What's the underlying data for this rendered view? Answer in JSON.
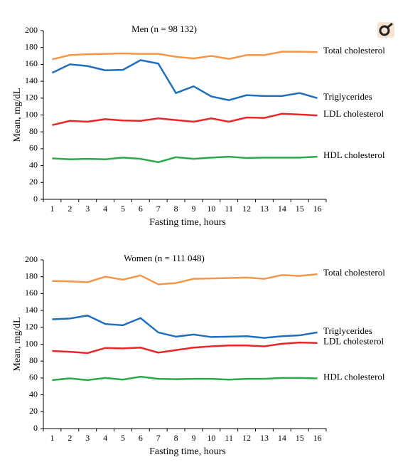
{
  "charts": [
    {
      "type": "line",
      "title": "Men (n = 98 132)",
      "x_label": "Fasting time, hours",
      "y_label": "Mean, mg/dL",
      "categories": [
        "1",
        "2",
        "3",
        "4",
        "5",
        "6",
        "7",
        "8",
        "9",
        "10",
        "11",
        "12",
        "13",
        "14",
        "15",
        "16"
      ],
      "ylim": [
        0,
        200
      ],
      "yticks": [
        0,
        20,
        40,
        60,
        80,
        100,
        120,
        140,
        160,
        180,
        200
      ],
      "series": [
        {
          "name": "Total cholesterol",
          "color": "#f79646",
          "values": [
            166,
            171,
            172,
            172.5,
            173,
            172.5,
            172.5,
            169,
            167,
            170,
            166.5,
            171,
            171,
            175,
            175,
            174.5
          ]
        },
        {
          "name": "Triglycerides",
          "color": "#1f6fbf",
          "values": [
            150,
            160,
            158,
            153,
            153.5,
            165,
            161,
            126,
            134,
            122,
            117.5,
            123.5,
            122.5,
            122.5,
            126,
            120
          ]
        },
        {
          "name": "LDL cholesterol",
          "color": "#e8262a",
          "values": [
            88,
            93,
            92,
            95,
            93.5,
            93,
            96,
            94,
            92,
            96,
            92,
            97,
            96.5,
            101.5,
            100.5,
            99.5
          ]
        },
        {
          "name": "HDL cholesterol",
          "color": "#2aaa4a",
          "values": [
            48.5,
            47.5,
            48,
            47.5,
            49.5,
            48,
            44,
            50,
            48,
            49.5,
            50.5,
            49,
            49.5,
            49.5,
            49.5,
            50.5
          ]
        }
      ]
    },
    {
      "type": "line",
      "title": "Women (n = 111 048)",
      "x_label": "Fasting time, hours",
      "y_label": "Mean, mg/dL",
      "categories": [
        "1",
        "2",
        "3",
        "4",
        "5",
        "6",
        "7",
        "8",
        "9",
        "10",
        "11",
        "12",
        "13",
        "14",
        "15",
        "16"
      ],
      "ylim": [
        0,
        200
      ],
      "yticks": [
        0,
        20,
        40,
        60,
        80,
        100,
        120,
        140,
        160,
        180,
        200
      ],
      "series": [
        {
          "name": "Total cholesterol",
          "color": "#f79646",
          "values": [
            175,
            174.5,
            173.5,
            180,
            176.5,
            181.5,
            171,
            172.5,
            177.5,
            178,
            178.5,
            179,
            177.5,
            182,
            181,
            183
          ]
        },
        {
          "name": "Triglycerides",
          "color": "#1f6fbf",
          "values": [
            129.5,
            130.5,
            134,
            124,
            122.5,
            131,
            114,
            109,
            111.5,
            108.5,
            109,
            109.5,
            107.5,
            109.5,
            110.5,
            114
          ]
        },
        {
          "name": "LDL cholesterol",
          "color": "#e8262a",
          "values": [
            92,
            91,
            89.5,
            95.5,
            95,
            96,
            90,
            93,
            96,
            97.5,
            98.5,
            98.5,
            97.5,
            100.5,
            102,
            101.5
          ]
        },
        {
          "name": "HDL cholesterol",
          "color": "#2aaa4a",
          "values": [
            57.5,
            59.5,
            57.5,
            60,
            58,
            61.5,
            59,
            58.5,
            59,
            59,
            58,
            59,
            59,
            60,
            60,
            59.5
          ]
        }
      ]
    }
  ]
}
